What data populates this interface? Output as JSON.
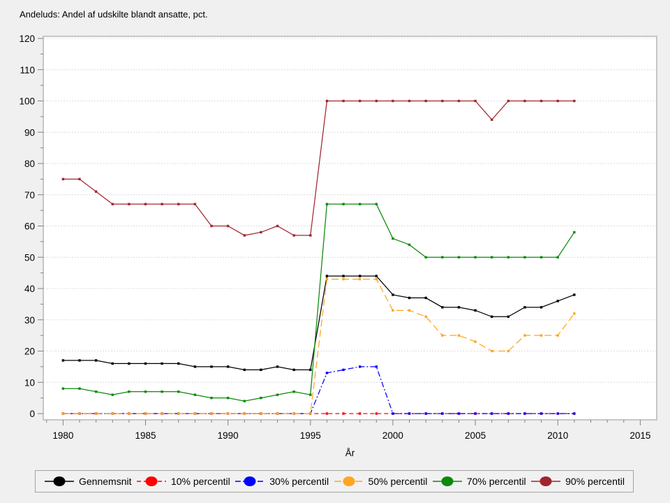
{
  "title": "Andeluds: Andel af udskilte blandt ansatte, pct.",
  "chart_data": {
    "type": "line",
    "title": "Andeluds: Andel af udskilte blandt ansatte, pct.",
    "xlabel": "År",
    "ylabel": "",
    "xlim": [
      1978.8,
      2016.0
    ],
    "ylim": [
      0,
      120
    ],
    "x_major_ticks": [
      1980,
      1985,
      1990,
      1995,
      2000,
      2005,
      2010,
      2015
    ],
    "x_minor_tick_step": 1,
    "y_major_ticks": [
      0,
      10,
      20,
      30,
      40,
      50,
      60,
      70,
      80,
      90,
      100,
      110,
      120
    ],
    "y_minor_tick_step": 5,
    "grid": "horizontal-dotted",
    "legend_position": "bottom",
    "x": [
      1980,
      1981,
      1982,
      1983,
      1984,
      1985,
      1986,
      1987,
      1988,
      1989,
      1990,
      1991,
      1992,
      1993,
      1994,
      1995,
      1996,
      1997,
      1998,
      1999,
      2000,
      2001,
      2002,
      2003,
      2004,
      2005,
      2006,
      2007,
      2008,
      2009,
      2010,
      2011
    ],
    "series": [
      {
        "name": "Gennemsnit",
        "color": "#000000",
        "dash": "solid",
        "values": [
          17,
          17,
          17,
          16,
          16,
          16,
          16,
          16,
          15,
          15,
          15,
          14,
          14,
          15,
          14,
          14,
          44,
          44,
          44,
          44,
          38,
          37,
          37,
          34,
          34,
          33,
          31,
          31,
          34,
          34,
          36,
          38
        ]
      },
      {
        "name": "10% percentil",
        "color": "#FF0000",
        "dash": "dash",
        "values": [
          0,
          0,
          0,
          0,
          0,
          0,
          0,
          0,
          0,
          0,
          0,
          0,
          0,
          0,
          0,
          0,
          0,
          0,
          0,
          0,
          0,
          0,
          0,
          0,
          0,
          0,
          0,
          0,
          0,
          0,
          0,
          0
        ]
      },
      {
        "name": "30% percentil",
        "color": "#0000FF",
        "dash": "dashdot",
        "values": [
          0,
          0,
          0,
          0,
          0,
          0,
          0,
          0,
          0,
          0,
          0,
          0,
          0,
          0,
          0,
          0,
          13,
          14,
          15,
          15,
          0,
          0,
          0,
          0,
          0,
          0,
          0,
          0,
          0,
          0,
          0,
          0
        ]
      },
      {
        "name": "50% percentil",
        "color": "#FFA51E",
        "dash": "longdash",
        "values": [
          0,
          0,
          0,
          0,
          0,
          0,
          0,
          0,
          0,
          0,
          0,
          0,
          0,
          0,
          0,
          0,
          43,
          43,
          43,
          43,
          33,
          33,
          31,
          25,
          25,
          23,
          20,
          20,
          25,
          25,
          25,
          32
        ]
      },
      {
        "name": "70% percentil",
        "color": "#0A8A0A",
        "dash": "solid",
        "values": [
          8,
          8,
          7,
          6,
          7,
          7,
          7,
          7,
          6,
          5,
          5,
          4,
          5,
          6,
          7,
          6,
          67,
          67,
          67,
          67,
          56,
          54,
          50,
          50,
          50,
          50,
          50,
          50,
          50,
          50,
          50,
          58
        ]
      },
      {
        "name": "90% percentil",
        "color": "#A0262D",
        "dash": "solid",
        "values": [
          75,
          75,
          71,
          67,
          67,
          67,
          67,
          67,
          67,
          60,
          60,
          57,
          58,
          60,
          57,
          57,
          100,
          100,
          100,
          100,
          100,
          100,
          100,
          100,
          100,
          100,
          94,
          100,
          100,
          100,
          100,
          100
        ]
      }
    ]
  }
}
